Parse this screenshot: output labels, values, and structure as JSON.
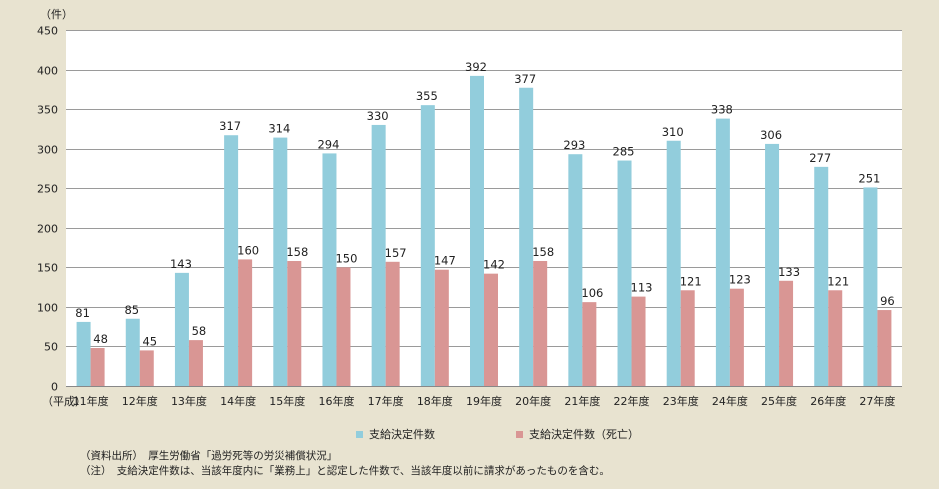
{
  "chart_data": {
    "type": "bar",
    "yunit": "（件）",
    "x_prefix": "（平成）",
    "categories": [
      "11年度",
      "12年度",
      "13年度",
      "14年度",
      "15年度",
      "16年度",
      "17年度",
      "18年度",
      "19年度",
      "20年度",
      "21年度",
      "22年度",
      "23年度",
      "24年度",
      "25年度",
      "26年度",
      "27年度"
    ],
    "series": [
      {
        "name": "支給決定件数",
        "color": "#92cddc",
        "values": [
          81,
          85,
          143,
          317,
          314,
          294,
          330,
          355,
          392,
          377,
          293,
          285,
          310,
          338,
          306,
          277,
          251
        ]
      },
      {
        "name": "支給決定件数（死亡）",
        "color": "#d99694",
        "values": [
          48,
          45,
          58,
          160,
          158,
          150,
          157,
          147,
          142,
          158,
          106,
          113,
          121,
          123,
          133,
          121,
          96
        ]
      }
    ],
    "ylim": [
      0,
      450
    ],
    "yticks": [
      0,
      50,
      100,
      150,
      200,
      250,
      300,
      350,
      400,
      450
    ],
    "grid": true,
    "legend_position": "bottom"
  },
  "notes": {
    "source": "（資料出所）　厚生労働省「過労死等の労災補償状況」",
    "note": "（注）　支給決定件数は、当該年度内に「業務上」と認定した件数で、当該年度以前に請求があったものを含む。"
  }
}
